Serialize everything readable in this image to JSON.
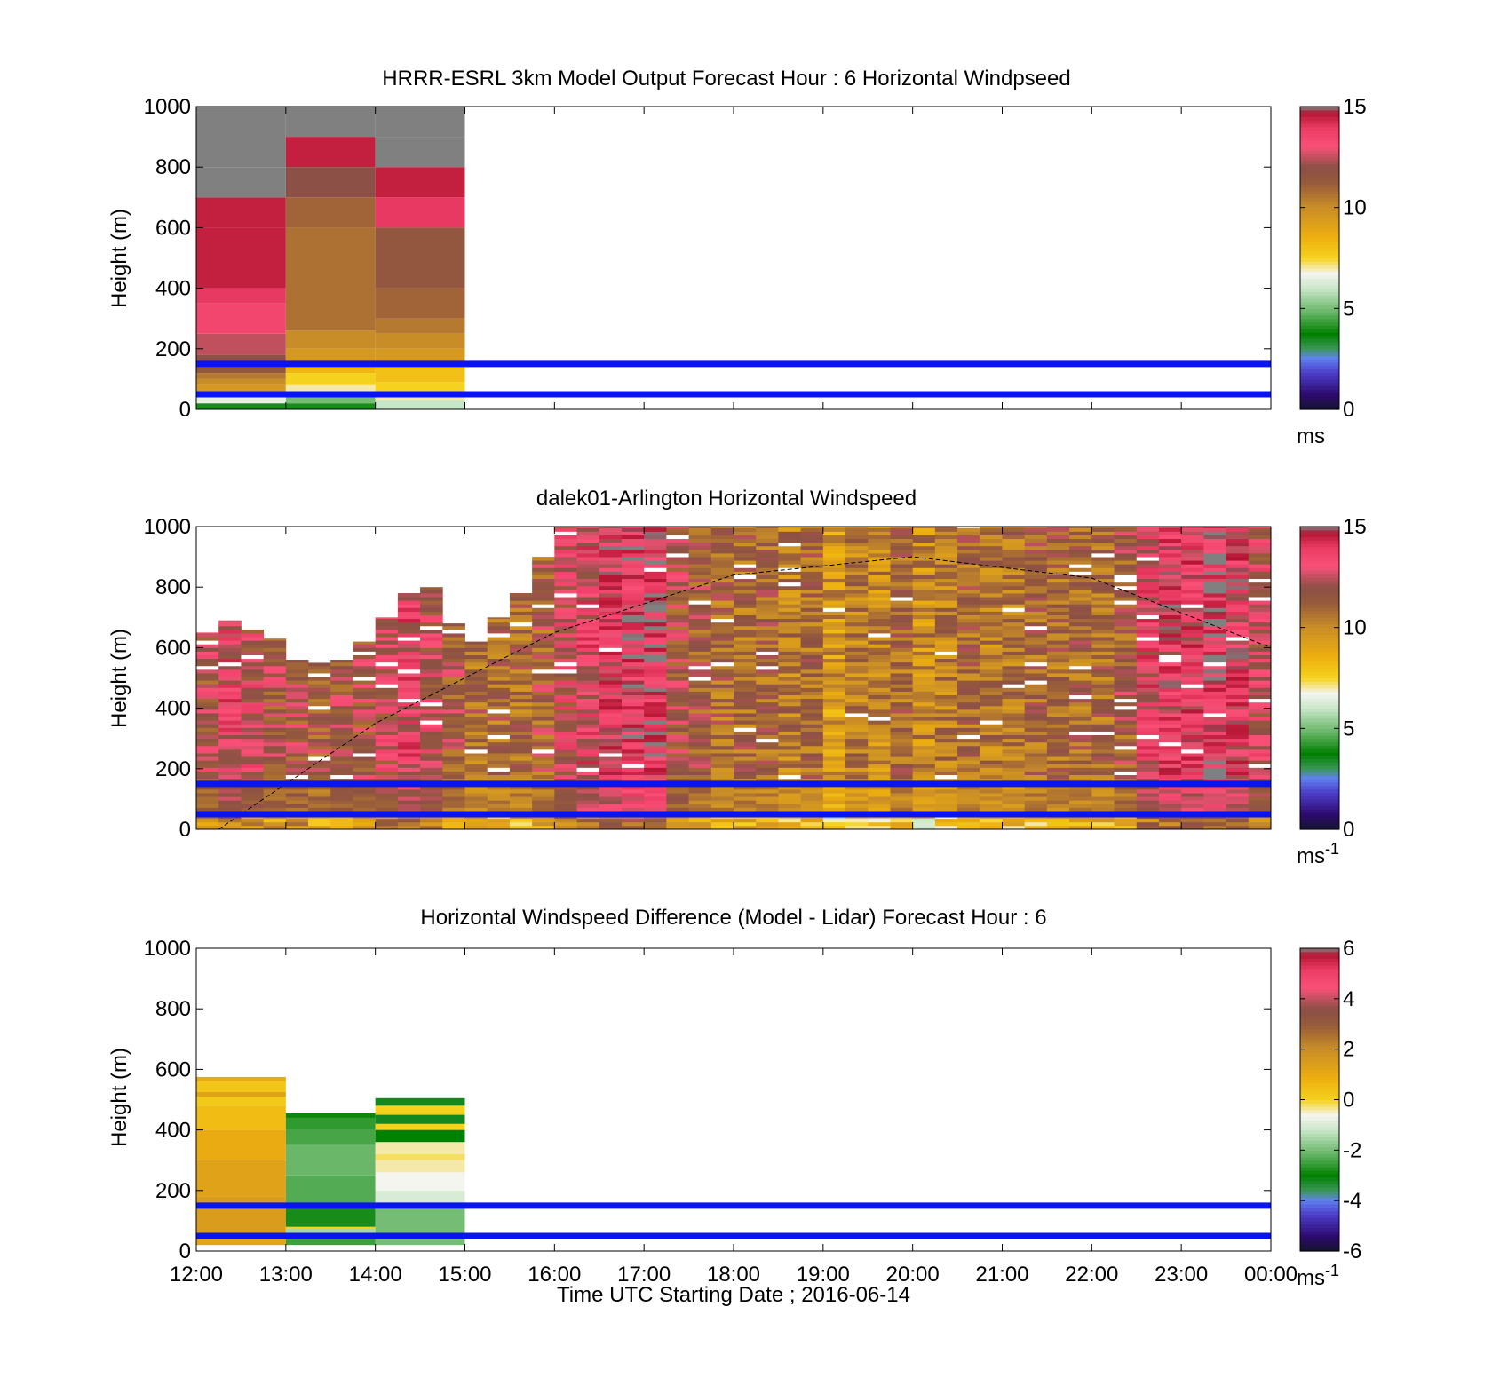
{
  "chart_data": [
    {
      "type": "heatmap",
      "title": "HRRR-ESRL 3km Model Output   Forecast Hour : 6 Horizontal Windpseed",
      "ylabel": "Height (m)",
      "ylim": [
        0,
        1000
      ],
      "yticks": [
        "0",
        "200",
        "400",
        "600",
        "800",
        "1000"
      ],
      "xlim": [
        "12:00",
        "00:00"
      ],
      "colorbar": {
        "unit": "ms",
        "clim": [
          0,
          15
        ],
        "ticks": [
          "0",
          "5",
          "10",
          "15"
        ]
      },
      "reference_lines_m": [
        50,
        150
      ],
      "columns": [
        {
          "start": "12:00",
          "end": "13:00",
          "rows": [
            [
              0,
              20,
              4
            ],
            [
              20,
              40,
              6.5
            ],
            [
              40,
              60,
              8.5
            ],
            [
              60,
              80,
              9.5
            ],
            [
              80,
              100,
              10
            ],
            [
              100,
              120,
              10.5
            ],
            [
              120,
              140,
              11.5
            ],
            [
              140,
              180,
              12
            ],
            [
              180,
              250,
              12.5
            ],
            [
              250,
              350,
              13.5
            ],
            [
              350,
              400,
              14
            ],
            [
              400,
              600,
              14.5
            ],
            [
              600,
              700,
              14.5
            ],
            [
              700,
              800,
              15
            ],
            [
              800,
              1000,
              16
            ]
          ]
        },
        {
          "start": "13:00",
          "end": "14:00",
          "rows": [
            [
              0,
              20,
              4
            ],
            [
              20,
              40,
              5
            ],
            [
              40,
              60,
              6
            ],
            [
              60,
              80,
              7
            ],
            [
              80,
              120,
              7.5
            ],
            [
              120,
              150,
              8.3
            ],
            [
              150,
              200,
              9.5
            ],
            [
              200,
              260,
              10
            ],
            [
              260,
              600,
              10.7
            ],
            [
              600,
              700,
              11
            ],
            [
              700,
              800,
              12
            ],
            [
              800,
              900,
              14.5
            ],
            [
              900,
              1000,
              15
            ]
          ]
        },
        {
          "start": "14:00",
          "end": "15:00",
          "rows": [
            [
              0,
              30,
              6
            ],
            [
              30,
              60,
              7
            ],
            [
              60,
              90,
              7.5
            ],
            [
              90,
              150,
              8
            ],
            [
              150,
              200,
              9.5
            ],
            [
              200,
              250,
              10
            ],
            [
              250,
              300,
              10.5
            ],
            [
              300,
              400,
              11
            ],
            [
              400,
              600,
              11.5
            ],
            [
              600,
              700,
              14
            ],
            [
              700,
              800,
              14.5
            ],
            [
              800,
              900,
              15
            ],
            [
              900,
              1000,
              16
            ]
          ]
        }
      ]
    },
    {
      "type": "heatmap",
      "title": "dalek01-Arlington  Horizontal Windspeed",
      "ylabel": "Height (m)",
      "ylim": [
        0,
        1000
      ],
      "yticks": [
        "0",
        "200",
        "400",
        "600",
        "800",
        "1000"
      ],
      "xlim": [
        "12:00",
        "00:00"
      ],
      "colorbar": {
        "unit": "ms",
        "unit_sup": "-1",
        "clim": [
          0,
          15
        ],
        "ticks": [
          "0",
          "5",
          "10",
          "15"
        ]
      },
      "reference_lines_m": [
        50,
        150
      ],
      "sun_elevation_curve": [
        [
          "12:15",
          0
        ],
        [
          "14:00",
          350
        ],
        [
          "16:00",
          650
        ],
        [
          "18:00",
          840
        ],
        [
          "20:00",
          900
        ],
        [
          "22:00",
          830
        ],
        [
          "24:00",
          600
        ]
      ],
      "columns": [
        {
          "start": "12:00",
          "end": "12:15",
          "top": 650,
          "mean": 12
        },
        {
          "start": "12:15",
          "end": "12:30",
          "top": 690,
          "mean": 13
        },
        {
          "start": "12:30",
          "end": "12:45",
          "top": 660,
          "mean": 12.5
        },
        {
          "start": "12:45",
          "end": "13:00",
          "top": 630,
          "mean": 12
        },
        {
          "start": "13:00",
          "end": "13:15",
          "top": 560,
          "mean": 12
        },
        {
          "start": "13:15",
          "end": "13:30",
          "top": 550,
          "mean": 11.5
        },
        {
          "start": "13:30",
          "end": "13:45",
          "top": 560,
          "mean": 12
        },
        {
          "start": "13:45",
          "end": "14:00",
          "top": 620,
          "mean": 12
        },
        {
          "start": "14:00",
          "end": "14:15",
          "top": 700,
          "mean": 12.5
        },
        {
          "start": "14:15",
          "end": "14:30",
          "top": 780,
          "mean": 13
        },
        {
          "start": "14:30",
          "end": "14:45",
          "top": 800,
          "mean": 12.5
        },
        {
          "start": "14:45",
          "end": "15:00",
          "top": 680,
          "mean": 11.5
        },
        {
          "start": "15:00",
          "end": "15:15",
          "top": 620,
          "mean": 11
        },
        {
          "start": "15:15",
          "end": "15:30",
          "top": 700,
          "mean": 11
        },
        {
          "start": "15:30",
          "end": "15:45",
          "top": 780,
          "mean": 11
        },
        {
          "start": "15:45",
          "end": "16:00",
          "top": 900,
          "mean": 11.5
        },
        {
          "start": "16:00",
          "end": "16:15",
          "top": 1000,
          "mean": 12.5
        },
        {
          "start": "16:15",
          "end": "16:30",
          "top": 1000,
          "mean": 13
        },
        {
          "start": "16:30",
          "end": "16:45",
          "top": 1000,
          "mean": 13.5
        },
        {
          "start": "16:45",
          "end": "17:00",
          "top": 1000,
          "mean": 14
        },
        {
          "start": "17:00",
          "end": "17:15",
          "top": 1000,
          "mean": 14
        },
        {
          "start": "17:15",
          "end": "17:30",
          "top": 1000,
          "mean": 12
        },
        {
          "start": "17:30",
          "end": "17:45",
          "top": 1000,
          "mean": 11.5
        },
        {
          "start": "17:45",
          "end": "18:00",
          "top": 1000,
          "mean": 11
        },
        {
          "start": "18:00",
          "end": "18:15",
          "top": 1000,
          "mean": 11
        },
        {
          "start": "18:15",
          "end": "18:30",
          "top": 1000,
          "mean": 11
        },
        {
          "start": "18:30",
          "end": "18:45",
          "top": 1000,
          "mean": 10.5
        },
        {
          "start": "18:45",
          "end": "19:00",
          "top": 1000,
          "mean": 11
        },
        {
          "start": "19:00",
          "end": "19:15",
          "top": 1000,
          "mean": 9.5
        },
        {
          "start": "19:15",
          "end": "19:30",
          "top": 1000,
          "mean": 10.5
        },
        {
          "start": "19:30",
          "end": "19:45",
          "top": 1000,
          "mean": 10
        },
        {
          "start": "19:45",
          "end": "20:00",
          "top": 1000,
          "mean": 11
        },
        {
          "start": "20:00",
          "end": "20:15",
          "top": 1000,
          "mean": 10
        },
        {
          "start": "20:15",
          "end": "20:30",
          "top": 1000,
          "mean": 10.5
        },
        {
          "start": "20:30",
          "end": "20:45",
          "top": 1000,
          "mean": 11
        },
        {
          "start": "20:45",
          "end": "21:00",
          "top": 1000,
          "mean": 10.5
        },
        {
          "start": "21:00",
          "end": "21:15",
          "top": 1000,
          "mean": 10.5
        },
        {
          "start": "21:15",
          "end": "21:30",
          "top": 1000,
          "mean": 11
        },
        {
          "start": "21:30",
          "end": "21:45",
          "top": 1000,
          "mean": 11
        },
        {
          "start": "21:45",
          "end": "22:00",
          "top": 1000,
          "mean": 11
        },
        {
          "start": "22:00",
          "end": "22:15",
          "top": 1000,
          "mean": 11
        },
        {
          "start": "22:15",
          "end": "22:30",
          "top": 1000,
          "mean": 11.5
        },
        {
          "start": "22:30",
          "end": "22:45",
          "top": 1000,
          "mean": 13
        },
        {
          "start": "22:45",
          "end": "23:00",
          "top": 1000,
          "mean": 13.5
        },
        {
          "start": "23:00",
          "end": "23:15",
          "top": 1000,
          "mean": 13.5
        },
        {
          "start": "23:15",
          "end": "23:30",
          "top": 1000,
          "mean": 14
        },
        {
          "start": "23:30",
          "end": "23:45",
          "top": 1000,
          "mean": 13.5
        },
        {
          "start": "23:45",
          "end": "24:00",
          "top": 1000,
          "mean": 12.5
        }
      ]
    },
    {
      "type": "heatmap",
      "title": "Horizontal Windspeed Difference (Model - Lidar) Forecast Hour : 6",
      "ylabel": "Height (m)",
      "xlabel": "Time UTC  Starting Date ; 2016-06-14",
      "ylim": [
        0,
        1000
      ],
      "yticks": [
        "0",
        "200",
        "400",
        "600",
        "800",
        "1000"
      ],
      "xticks": [
        "12:00",
        "13:00",
        "14:00",
        "15:00",
        "16:00",
        "17:00",
        "18:00",
        "19:00",
        "20:00",
        "21:00",
        "22:00",
        "23:00",
        "00:00"
      ],
      "colorbar": {
        "unit": "ms",
        "unit_sup": "-1",
        "clim": [
          -6,
          6
        ],
        "ticks": [
          "-6",
          "-4",
          "-2",
          "0",
          "2",
          "4",
          "6"
        ]
      },
      "reference_lines_m": [
        50,
        150
      ],
      "columns": [
        {
          "start": "12:00",
          "end": "13:00",
          "rows": [
            [
              20,
              60,
              1.2
            ],
            [
              60,
              180,
              1.5
            ],
            [
              180,
              300,
              1.3
            ],
            [
              300,
              400,
              1.0
            ],
            [
              400,
              480,
              0.5
            ],
            [
              480,
              510,
              0.2
            ],
            [
              510,
              525,
              1.3
            ],
            [
              525,
              560,
              0.3
            ],
            [
              560,
              575,
              1.0
            ]
          ]
        },
        {
          "start": "13:00",
          "end": "14:00",
          "rows": [
            [
              20,
              60,
              -2.5
            ],
            [
              60,
              75,
              -1.5
            ],
            [
              75,
              80,
              0
            ],
            [
              80,
              150,
              -2.8
            ],
            [
              150,
              250,
              -2.3
            ],
            [
              250,
              350,
              -2.1
            ],
            [
              350,
              400,
              -2.4
            ],
            [
              400,
              440,
              -2.6
            ],
            [
              440,
              455,
              -2.9
            ]
          ]
        },
        {
          "start": "14:00",
          "end": "15:00",
          "rows": [
            [
              20,
              150,
              -2.0
            ],
            [
              150,
              200,
              -1.0
            ],
            [
              200,
              260,
              -0.6
            ],
            [
              260,
              300,
              -0.4
            ],
            [
              300,
              320,
              -0.2
            ],
            [
              320,
              360,
              -0.4
            ],
            [
              360,
              400,
              -3.0
            ],
            [
              400,
              420,
              0
            ],
            [
              420,
              450,
              -3.2
            ],
            [
              450,
              480,
              0
            ],
            [
              480,
              505,
              -3.2
            ]
          ]
        }
      ]
    }
  ]
}
